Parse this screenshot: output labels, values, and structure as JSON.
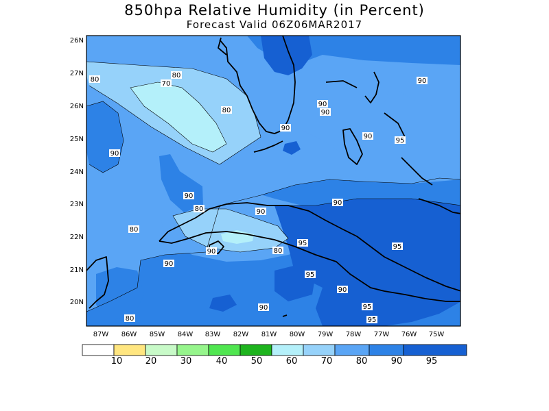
{
  "title": "850hpa Relative Humidity (in Percent)",
  "subtitle": "Forecast Valid  06Z06MAR2017",
  "colors": {
    "c0_10": "#ffffff",
    "c10_20": "#ffe680",
    "c20_30": "#c8fac8",
    "c30_40": "#96f58c",
    "c40_50": "#50e650",
    "c50_60": "#1eb41e",
    "c60_70": "#b4f0fa",
    "c70_80": "#96d2fa",
    "c80_90": "#5aa5f5",
    "c90_95": "#2d82e6",
    "c95_100": "#1660d2",
    "coast": "#000000"
  },
  "lat_ticks": [
    "26N",
    "27N",
    "26N",
    "25N",
    "24N",
    "23N",
    "22N",
    "21N",
    "20N"
  ],
  "lon_ticks": [
    "87W",
    "86W",
    "85W",
    "84W",
    "83W",
    "82W",
    "81W",
    "80W",
    "79W",
    "78W",
    "77W",
    "76W",
    "75W"
  ],
  "contour_labels": [
    "80",
    "70",
    "80",
    "80",
    "90",
    "90",
    "90",
    "90",
    "95",
    "90",
    "90",
    "80",
    "80",
    "90",
    "90",
    "80",
    "95",
    "95",
    "90",
    "95",
    "90",
    "90",
    "80",
    "95",
    "95",
    "90",
    "90"
  ],
  "colorbar": {
    "labels": [
      "10",
      "20",
      "30",
      "40",
      "50",
      "60",
      "70",
      "80",
      "90",
      "95"
    ]
  }
}
